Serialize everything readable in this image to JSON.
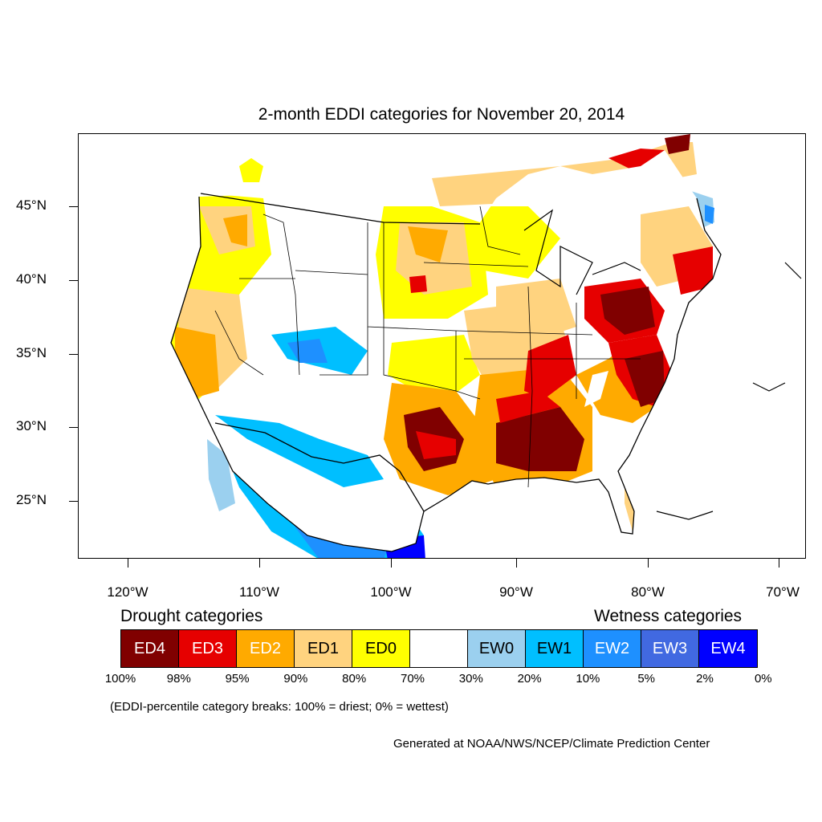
{
  "title": "2-month EDDI categories for November 20, 2014",
  "map": {
    "lat_labels": [
      "45°N",
      "40°N",
      "35°N",
      "30°N",
      "25°N"
    ],
    "lon_labels": [
      "120°W",
      "110°W",
      "100°W",
      "90°W",
      "80°W",
      "70°W"
    ],
    "palette": {
      "ED4": "#800000",
      "ED3": "#e60000",
      "ED2": "#ffaa00",
      "ED1": "#ffd37f",
      "ED0": "#ffff00",
      "neutral": "#ffffff",
      "EW0": "#9bd0ef",
      "EW1": "#00bfff",
      "EW2": "#1e90ff",
      "EW3": "#4169e1",
      "EW4": "#0000ff"
    }
  },
  "legend": {
    "drought_heading": "Drought categories",
    "wetness_heading": "Wetness categories",
    "categories": [
      {
        "label": "ED4",
        "color": "#800000",
        "text_color": "#ffffff"
      },
      {
        "label": "ED3",
        "color": "#e60000",
        "text_color": "#ffffff"
      },
      {
        "label": "ED2",
        "color": "#ffaa00",
        "text_color": "#ffffff"
      },
      {
        "label": "ED1",
        "color": "#ffd37f",
        "text_color": "#000000"
      },
      {
        "label": "ED0",
        "color": "#ffff00",
        "text_color": "#000000"
      },
      {
        "label": "",
        "color": "#ffffff",
        "text_color": "#000000"
      },
      {
        "label": "EW0",
        "color": "#9bd0ef",
        "text_color": "#000000"
      },
      {
        "label": "EW1",
        "color": "#00bfff",
        "text_color": "#000000"
      },
      {
        "label": "EW2",
        "color": "#1e90ff",
        "text_color": "#ffffff"
      },
      {
        "label": "EW3",
        "color": "#4169e1",
        "text_color": "#ffffff"
      },
      {
        "label": "EW4",
        "color": "#0000ff",
        "text_color": "#ffffff"
      }
    ],
    "breaks": [
      "100%",
      "98%",
      "95%",
      "90%",
      "80%",
      "70%",
      "30%",
      "20%",
      "10%",
      "5%",
      "2%",
      "0%"
    ],
    "note": "(EDDI-percentile category breaks: 100% = driest; 0% = wettest)"
  },
  "credit": "Generated at NOAA/NWS/NCEP/Climate Prediction Center"
}
